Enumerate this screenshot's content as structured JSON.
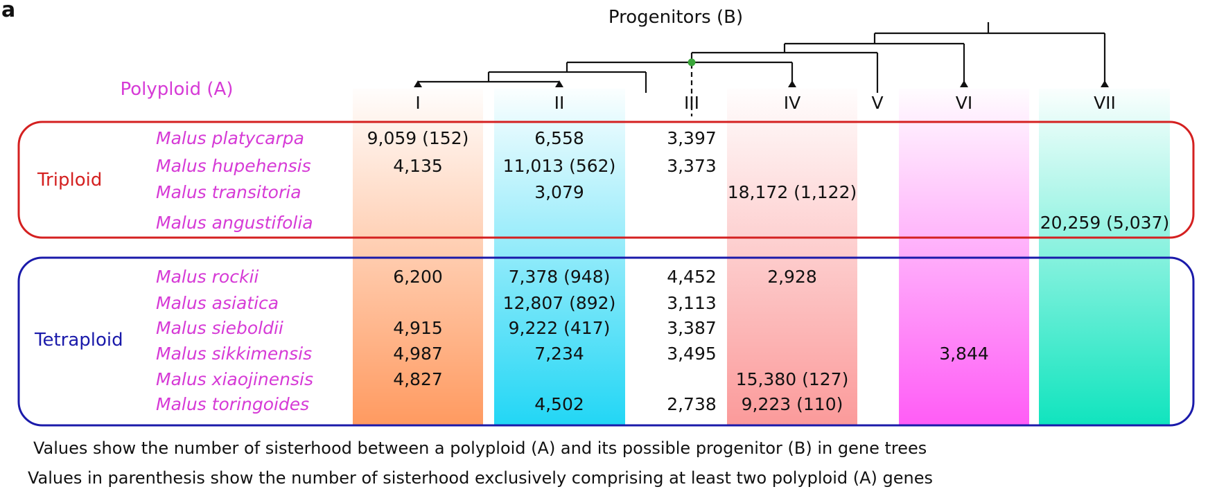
{
  "panel_label": "a",
  "progenitors_title": "Progenitors (B)",
  "polyploid_title": "Polyploid (A)",
  "progenitors": [
    "I",
    "II",
    "III",
    "IV",
    "V",
    "VI",
    "VII"
  ],
  "groups": [
    {
      "label": "Triploid",
      "color": "#d42020",
      "species": [
        {
          "name": "Malus platycarpa",
          "values": {
            "I": "9,059 (152)",
            "II": "6,558",
            "III": "3,397"
          }
        },
        {
          "name": "Malus hupehensis",
          "values": {
            "I": "4,135",
            "II": "11,013 (562)",
            "III": "3,373"
          }
        },
        {
          "name": "Malus transitoria",
          "values": {
            "II": "3,079",
            "IV": "18,172 (1,122)"
          }
        },
        {
          "name": "Malus angustifolia",
          "values": {
            "VII": "20,259 (5,037)"
          }
        }
      ]
    },
    {
      "label": "Tetraploid",
      "color": "#1a1aaa",
      "species": [
        {
          "name": "Malus rockii",
          "values": {
            "I": "6,200",
            "II": "7,378 (948)",
            "III": "4,452",
            "IV": "2,928"
          }
        },
        {
          "name": "Malus asiatica",
          "values": {
            "II": "12,807 (892)",
            "III": "3,113"
          }
        },
        {
          "name": "Malus sieboldii",
          "values": {
            "I": "4,915",
            "II": "9,222 (417)",
            "III": "3,387"
          }
        },
        {
          "name": "Malus sikkimensis",
          "values": {
            "I": "4,987",
            "II": "7,234",
            "III": "3,495",
            "VI": "3,844"
          }
        },
        {
          "name": "Malus xiaojinensis",
          "values": {
            "I": "4,827",
            "IV": "15,380 (127)"
          }
        },
        {
          "name": "Malus toringoides",
          "values": {
            "II": "4,502",
            "III": "2,738",
            "IV": "9,223 (110)"
          }
        }
      ]
    }
  ],
  "column_colors": {
    "I": "#ff9a60",
    "II": "#22d6f5",
    "IV": "#fb9a9a",
    "VI": "#ff5cf6",
    "VII": "#10e4be"
  },
  "node_color": "#3aa63a",
  "notes": [
    "Values show the number of sisterhood between a polyploid (A) and its possible progenitor (B) in gene trees",
    "Values in parenthesis show the number of sisterhood exclusively comprising at least two polyploid (A) genes"
  ]
}
